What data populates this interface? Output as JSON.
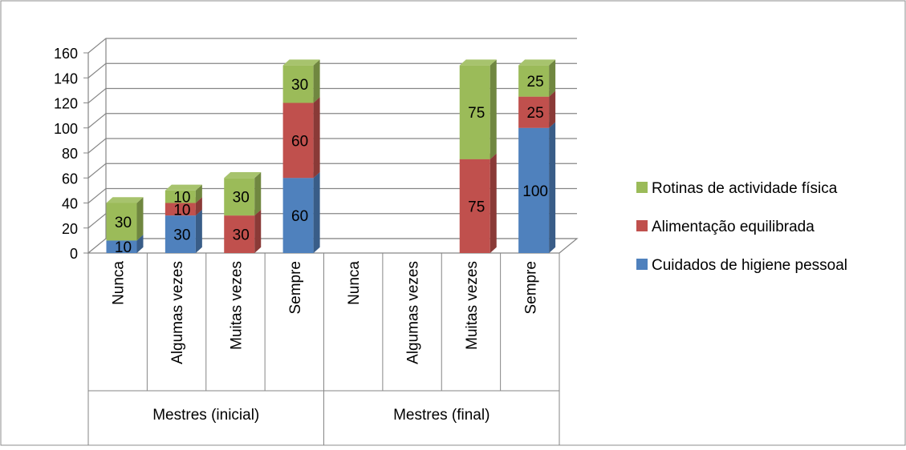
{
  "chart_data": {
    "type": "bar",
    "stacked": true,
    "three_d": true,
    "title": "",
    "xlabel": "",
    "ylabel": "",
    "ylim": [
      0,
      160
    ],
    "yticks": [
      0,
      20,
      40,
      60,
      80,
      100,
      120,
      140,
      160
    ],
    "grid": true,
    "legend_position": "right",
    "groups": [
      {
        "label": "Mestres (inicial)",
        "categories": [
          "Nunca",
          "Algumas vezes",
          "Muitas vezes",
          "Sempre"
        ]
      },
      {
        "label": "Mestres (final)",
        "categories": [
          "Nunca",
          "Algumas vezes",
          "Muitas vezes",
          "Sempre"
        ]
      }
    ],
    "categories": [
      "Nunca",
      "Algumas vezes",
      "Muitas vezes",
      "Sempre",
      "Nunca",
      "Algumas vezes",
      "Muitas vezes",
      "Sempre"
    ],
    "series": [
      {
        "name": "Cuidados de higiene pessoal",
        "color": "#4F81BD",
        "values": [
          10,
          30,
          0,
          60,
          0,
          0,
          0,
          100
        ],
        "labels": [
          "10",
          "30",
          "",
          "60",
          "",
          "",
          "",
          "100"
        ]
      },
      {
        "name": "Alimentação equilibrada",
        "color": "#C0504D",
        "values": [
          0,
          10,
          30,
          60,
          0,
          0,
          75,
          25
        ],
        "labels": [
          "",
          "10",
          "30",
          "60",
          "",
          "",
          "75",
          "25"
        ]
      },
      {
        "name": "Rotinas de actividade física",
        "color": "#9BBB59",
        "values": [
          30,
          10,
          30,
          30,
          0,
          0,
          75,
          25
        ],
        "labels": [
          "30",
          "10",
          "30",
          "30",
          "",
          "",
          "75",
          "25"
        ]
      }
    ],
    "legend_order": [
      "Rotinas de actividade física",
      "Alimentação equilibrada",
      "Cuidados de higiene pessoal"
    ]
  }
}
